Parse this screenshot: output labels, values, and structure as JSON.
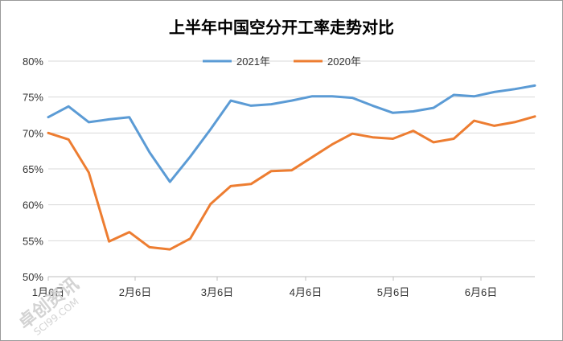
{
  "chart_data": {
    "type": "line",
    "title": "上半年中国空分开工率走势对比",
    "xlabel": "",
    "ylabel": "",
    "ylim": [
      50,
      80
    ],
    "ytick_labels": [
      "50%",
      "55%",
      "60%",
      "65%",
      "70%",
      "75%",
      "80%"
    ],
    "x_tick_labels": [
      "1月6日",
      "2月6日",
      "3月6日",
      "4月6日",
      "5月6日",
      "6月6日"
    ],
    "legend_position": "top",
    "grid": "horizontal",
    "series": [
      {
        "name": "2021年",
        "color": "#5B9BD5",
        "values": [
          72.2,
          73.7,
          71.5,
          71.9,
          72.2,
          67.3,
          63.2,
          66.7,
          70.5,
          74.5,
          73.8,
          74.0,
          74.5,
          75.1,
          75.1,
          74.9,
          73.8,
          72.8,
          73.0,
          73.5,
          75.3,
          75.1,
          75.7,
          76.1,
          76.6
        ]
      },
      {
        "name": "2020年",
        "color": "#ED7D31",
        "values": [
          70.0,
          69.1,
          64.5,
          54.9,
          56.2,
          54.1,
          53.8,
          55.3,
          60.1,
          62.6,
          62.9,
          64.7,
          64.8,
          66.6,
          68.4,
          69.9,
          69.4,
          69.2,
          70.3,
          68.7,
          69.2,
          71.7,
          71.0,
          71.5,
          72.3
        ]
      }
    ]
  },
  "watermark": "卓创资讯 SCI99.COM"
}
